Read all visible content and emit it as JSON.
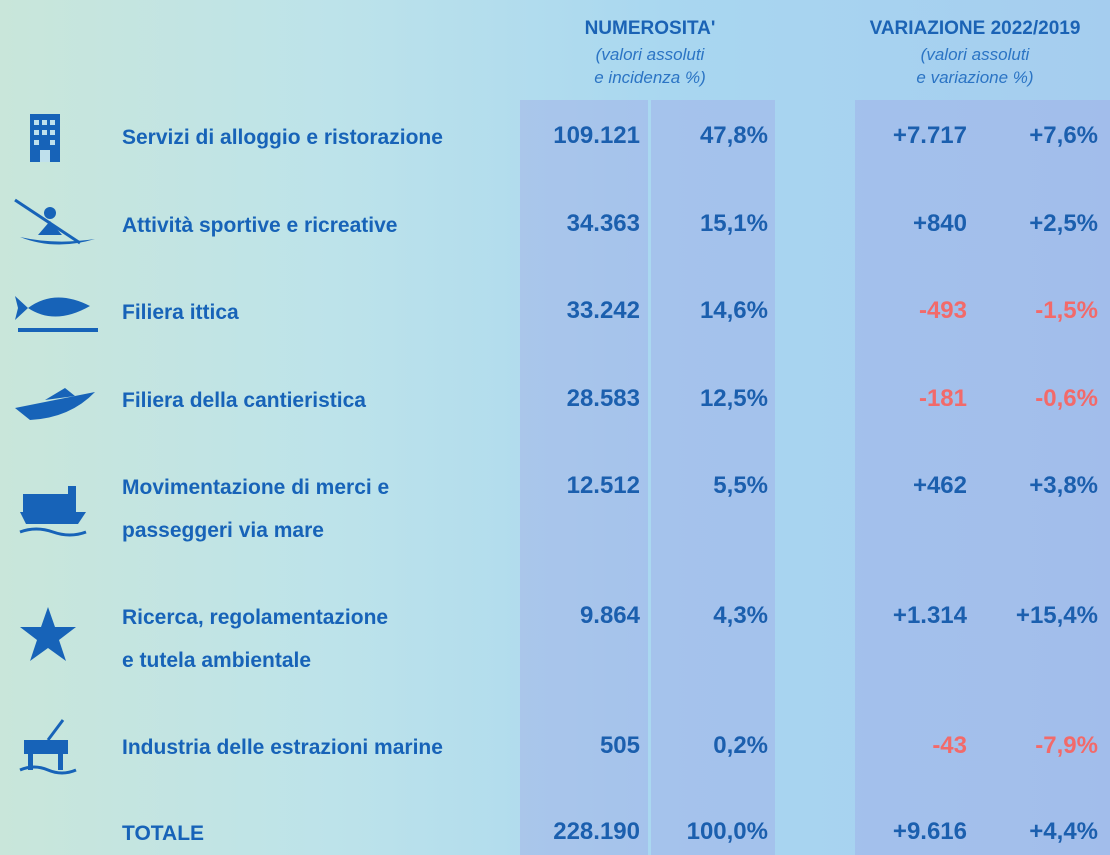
{
  "header": {
    "numerosita": {
      "title": "NUMEROSITA'",
      "subtitle": [
        "(valori assoluti",
        "e incidenza %)"
      ]
    },
    "variazione": {
      "title": "VARIAZIONE 2022/2019",
      "subtitle": [
        "(valori assoluti",
        "e variazione %)"
      ]
    }
  },
  "rows": [
    {
      "label": [
        "Servizi di alloggio e ristorazione"
      ],
      "count": "109.121",
      "share": "47,8%",
      "change": "+7.717",
      "change_pct": "+7,6%"
    },
    {
      "label": [
        "Attività sportive e ricreative"
      ],
      "count": "34.363",
      "share": "15,1%",
      "change": "+840",
      "change_pct": "+2,5%"
    },
    {
      "label": [
        "Filiera ittica"
      ],
      "count": "33.242",
      "share": "14,6%",
      "change": "-493",
      "change_pct": "-1,5%"
    },
    {
      "label": [
        "Filiera della cantieristica"
      ],
      "count": "28.583",
      "share": "12,5%",
      "change": "-181",
      "change_pct": "-0,6%"
    },
    {
      "label": [
        "Movimentazione di merci e",
        "passeggeri via mare"
      ],
      "count": "12.512",
      "share": "5,5%",
      "change": "+462",
      "change_pct": "+3,8%"
    },
    {
      "label": [
        "Ricerca, regolamentazione",
        "e tutela ambientale"
      ],
      "count": "9.864",
      "share": "4,3%",
      "change": "+1.314",
      "change_pct": "+15,4%"
    },
    {
      "label": [
        "Industria delle estrazioni marine"
      ],
      "count": "505",
      "share": "0,2%",
      "change": "-43",
      "change_pct": "-7,9%"
    },
    {
      "label": [
        "TOTALE"
      ],
      "count": "228.190",
      "share": "100,0%",
      "change": "+9.616",
      "change_pct": "+4,4%"
    }
  ]
}
